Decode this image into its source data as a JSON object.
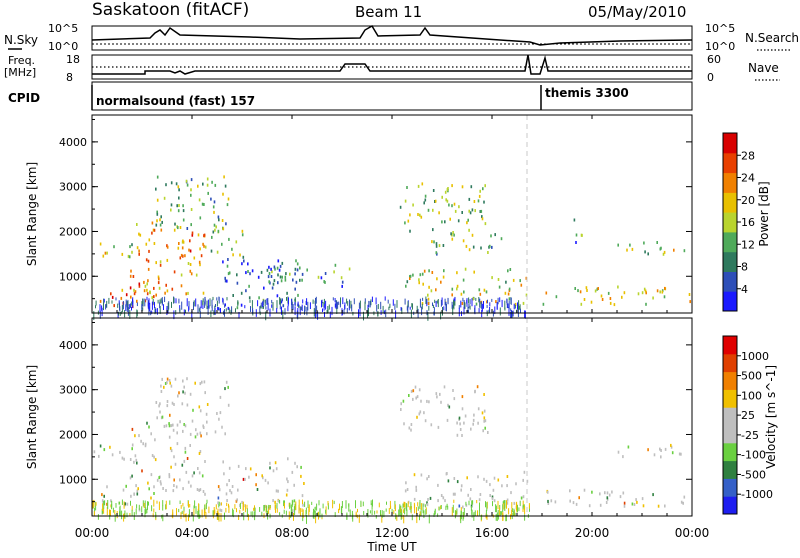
{
  "header": {
    "station": "Saskatoon (fitACF)",
    "beam": "Beam 11",
    "date": "05/May/2010"
  },
  "panels": {
    "nsky_label": "N.Sky",
    "nsearch_label": "N.Search",
    "freq_label_1": "Freq.",
    "freq_label_2": "[MHz]",
    "nave_label": "Nave",
    "cpid_label": "CPID",
    "nsky_ticks": [
      "10^5",
      "10^0"
    ],
    "nsearch_ticks": [
      "10^5",
      "10^0"
    ],
    "freq_ticks": [
      "18",
      "8"
    ],
    "nave_ticks": [
      "60",
      "0"
    ],
    "cpid_segments": [
      "normalsound (fast) 157",
      "themis 3300"
    ]
  },
  "colors": {
    "power_scale": [
      "#1a1aff",
      "#2e4fb8",
      "#2f7a5e",
      "#4faa5a",
      "#b9d42e",
      "#e8c000",
      "#f08000",
      "#e84000",
      "#d80000"
    ],
    "velocity_scale": [
      "#1e1ef0",
      "#3560c8",
      "#2f8040",
      "#6ad040",
      "#bfbfbf",
      "#bfbfbf",
      "#f0c000",
      "#f08000",
      "#e04000",
      "#e00000"
    ],
    "background": "#ffffff",
    "grid": "#cccccc"
  },
  "chart_data": [
    {
      "type": "heatmap",
      "title": "",
      "xlabel": "Time UT",
      "ylabel": "Slant Range [km]",
      "xlim_hours": [
        0,
        24
      ],
      "ylim": [
        180,
        4600
      ],
      "x_ticks": [
        "00:00",
        "04:00",
        "08:00",
        "12:00",
        "16:00",
        "20:00",
        "00:00"
      ],
      "y_ticks": [
        "1000",
        "2000",
        "3000",
        "4000"
      ],
      "colorbar_label": "Power [dB]",
      "colorbar_ticks": [
        "4",
        "8",
        "12",
        "16",
        "20",
        "24",
        "28"
      ],
      "blobs": [
        {
          "t0": 0.0,
          "t1": 1.8,
          "r0": 1400,
          "r1": 1800,
          "level": 0.5
        },
        {
          "t0": 0.3,
          "t1": 2.5,
          "r0": 300,
          "r1": 900,
          "level": 0.8
        },
        {
          "t0": 1.5,
          "t1": 4.5,
          "r0": 600,
          "r1": 2300,
          "level": 0.7
        },
        {
          "t0": 2.5,
          "t1": 5.5,
          "r0": 2000,
          "r1": 3300,
          "level": 0.4
        },
        {
          "t0": 4.5,
          "t1": 6.0,
          "r0": 1500,
          "r1": 2100,
          "level": 0.45
        },
        {
          "t0": 5.0,
          "t1": 8.5,
          "r0": 300,
          "r1": 1500,
          "level": 0.2
        },
        {
          "t0": 7.0,
          "t1": 10.5,
          "r0": 800,
          "r1": 1300,
          "level": 0.25
        },
        {
          "t0": 12.3,
          "t1": 15.8,
          "r0": 2000,
          "r1": 3100,
          "level": 0.45
        },
        {
          "t0": 13.5,
          "t1": 16.5,
          "r0": 1500,
          "r1": 2000,
          "level": 0.4
        },
        {
          "t0": 12.5,
          "t1": 17.5,
          "r0": 400,
          "r1": 1200,
          "level": 0.55
        },
        {
          "t0": 18.0,
          "t1": 23.9,
          "r0": 400,
          "r1": 800,
          "level": 0.55
        },
        {
          "t0": 21.0,
          "t1": 23.8,
          "r0": 1500,
          "r1": 1800,
          "level": 0.45
        },
        {
          "t0": 19.2,
          "t1": 19.6,
          "r0": 1700,
          "r1": 2500,
          "level": 0.3
        }
      ]
    },
    {
      "type": "heatmap",
      "title": "",
      "xlabel": "Time UT",
      "ylabel": "Slant Range [km]",
      "xlim_hours": [
        0,
        24
      ],
      "ylim": [
        180,
        4600
      ],
      "x_ticks": [
        "00:00",
        "04:00",
        "08:00",
        "12:00",
        "16:00",
        "20:00",
        "00:00"
      ],
      "y_ticks": [
        "1000",
        "2000",
        "3000",
        "4000"
      ],
      "colorbar_label": "Velocity [m s^-1]",
      "colorbar_ticks": [
        "1000",
        "500",
        "100",
        "25",
        "-25",
        "-100",
        "-500",
        "-1000"
      ],
      "blobs": [
        {
          "t0": 0.0,
          "t1": 1.8,
          "r0": 1400,
          "r1": 1800,
          "level": 0.5
        },
        {
          "t0": 0.3,
          "t1": 2.5,
          "r0": 300,
          "r1": 900,
          "level": 0.5
        },
        {
          "t0": 1.5,
          "t1": 4.5,
          "r0": 600,
          "r1": 2300,
          "level": 0.5
        },
        {
          "t0": 2.5,
          "t1": 5.5,
          "r0": 2000,
          "r1": 3300,
          "level": 0.5
        },
        {
          "t0": 5.0,
          "t1": 8.5,
          "r0": 300,
          "r1": 1500,
          "level": 0.5
        },
        {
          "t0": 12.3,
          "t1": 15.8,
          "r0": 2000,
          "r1": 3100,
          "level": 0.5
        },
        {
          "t0": 12.5,
          "t1": 17.5,
          "r0": 400,
          "r1": 1200,
          "level": 0.5
        },
        {
          "t0": 18.0,
          "t1": 23.9,
          "r0": 400,
          "r1": 800,
          "level": 0.5
        },
        {
          "t0": 21.0,
          "t1": 23.8,
          "r0": 1500,
          "r1": 1800,
          "level": 0.5
        }
      ]
    }
  ]
}
